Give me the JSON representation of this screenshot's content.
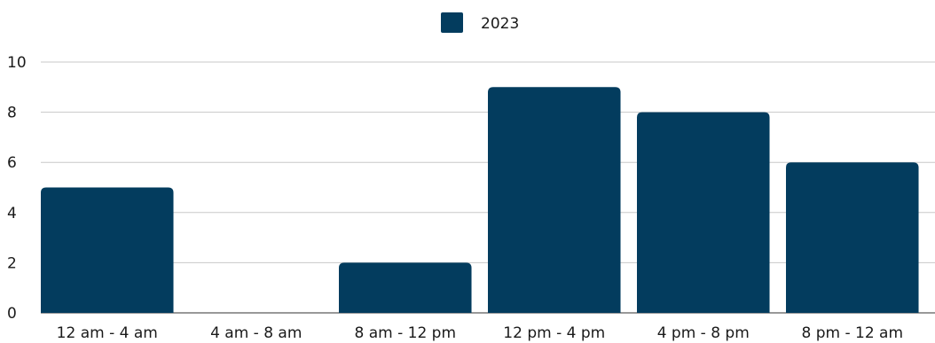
{
  "chart_data": {
    "type": "bar",
    "categories": [
      "12 am - 4 am",
      "4 am - 8 am",
      "8 am - 12 pm",
      "12 pm - 4 pm",
      "4 pm - 8 pm",
      "8 pm - 12 am"
    ],
    "series": [
      {
        "name": "2023",
        "values": [
          5,
          0,
          2,
          9,
          8,
          6
        ],
        "color": "#033c5e"
      }
    ],
    "title": "",
    "xlabel": "",
    "ylabel": "",
    "ylim": [
      0,
      10
    ],
    "yticks": [
      "0",
      "2",
      "4",
      "6",
      "8",
      "10"
    ],
    "grid": true,
    "legend_position": "top-center"
  }
}
